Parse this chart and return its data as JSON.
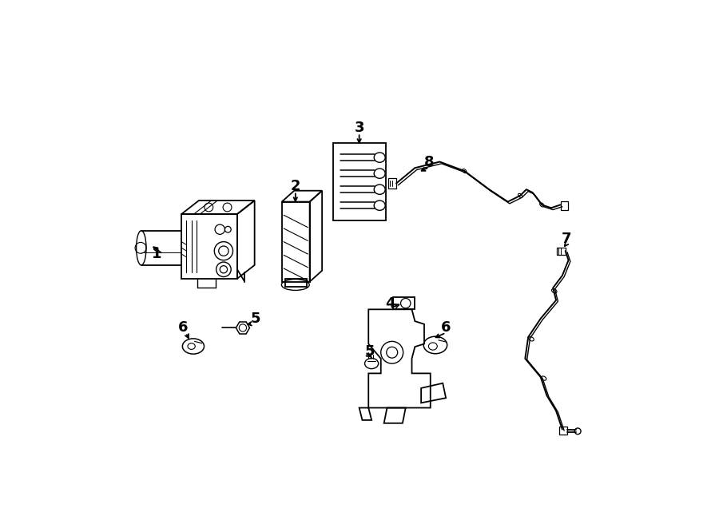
{
  "bg_color": "#ffffff",
  "line_color": "#000000",
  "fig_width": 9.0,
  "fig_height": 6.61,
  "dpi": 100
}
